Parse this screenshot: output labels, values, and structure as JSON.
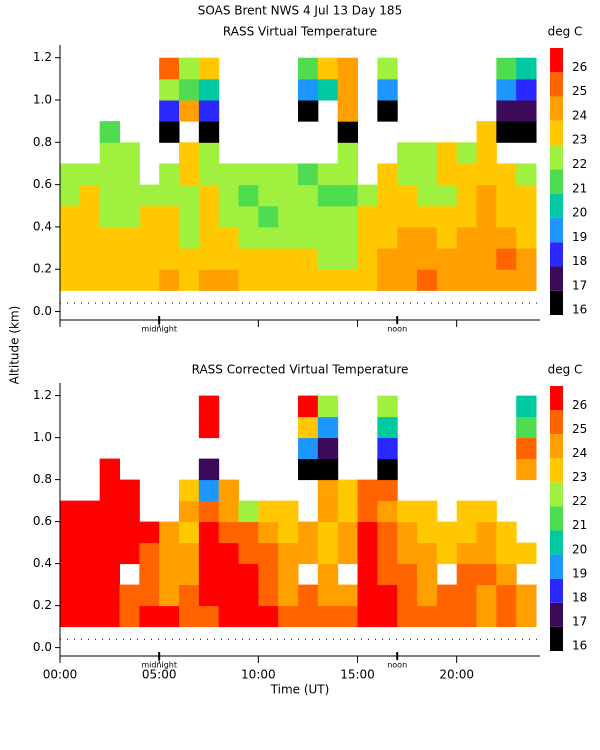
{
  "title": "SOAS Brent NWS    4 Jul 13 Day 185",
  "ylabel": "Altitude (km)",
  "chart_data": [
    {
      "type": "heatmap",
      "title": "RASS Virtual Temperature",
      "colorbar_label": "deg C",
      "x": [
        0.5,
        1.5,
        2.5,
        3.5,
        4.5,
        5.5,
        6.5,
        7.5,
        8.5,
        9.5,
        10.5,
        11.5,
        12.5,
        13.5,
        14.5,
        15.5,
        16.5,
        17.5,
        18.5,
        19.5,
        20.5,
        21.5,
        22.5,
        23.5
      ],
      "y": [
        0.15,
        0.25,
        0.35,
        0.45,
        0.55,
        0.65,
        0.75,
        0.85,
        0.95,
        1.05,
        1.15
      ],
      "z": [
        [
          23,
          23,
          23,
          23,
          23,
          24,
          23,
          24,
          24,
          23,
          23,
          23,
          23,
          23,
          23,
          23,
          24,
          24,
          25,
          24,
          24,
          24,
          24,
          24
        ],
        [
          23,
          23,
          23,
          23,
          23,
          23,
          23,
          23,
          23,
          23,
          23,
          23,
          23,
          22,
          22,
          23,
          24,
          24,
          24,
          24,
          24,
          24,
          25,
          24
        ],
        [
          23,
          23,
          23,
          23,
          23,
          23,
          22,
          23,
          23,
          22,
          22,
          22,
          22,
          22,
          22,
          23,
          23,
          24,
          24,
          23,
          24,
          24,
          24,
          23
        ],
        [
          23,
          23,
          22,
          22,
          23,
          23,
          22,
          23,
          22,
          22,
          21,
          22,
          22,
          22,
          22,
          23,
          23,
          23,
          23,
          23,
          23,
          24,
          23,
          23
        ],
        [
          22,
          23,
          22,
          22,
          22,
          22,
          22,
          23,
          22,
          21,
          22,
          22,
          22,
          21,
          21,
          22,
          23,
          23,
          22,
          22,
          23,
          24,
          23,
          23
        ],
        [
          22,
          22,
          22,
          22,
          null,
          22,
          23,
          22,
          22,
          22,
          22,
          22,
          21,
          22,
          22,
          null,
          23,
          22,
          22,
          23,
          23,
          23,
          23,
          22
        ],
        [
          null,
          null,
          22,
          22,
          null,
          null,
          23,
          22,
          null,
          null,
          null,
          null,
          null,
          null,
          22,
          null,
          null,
          22,
          22,
          23,
          22,
          23,
          null,
          null
        ],
        [
          null,
          null,
          21,
          null,
          null,
          16,
          null,
          16,
          null,
          null,
          null,
          null,
          null,
          null,
          16,
          null,
          null,
          null,
          null,
          null,
          null,
          23,
          16,
          16
        ],
        [
          null,
          null,
          null,
          null,
          null,
          18,
          24,
          18,
          null,
          null,
          null,
          null,
          16,
          null,
          24,
          null,
          16,
          null,
          null,
          null,
          null,
          null,
          17,
          17
        ],
        [
          null,
          null,
          null,
          null,
          null,
          22,
          21,
          20,
          null,
          null,
          null,
          null,
          19,
          20,
          24,
          null,
          19,
          null,
          null,
          null,
          null,
          null,
          19,
          18
        ],
        [
          null,
          null,
          null,
          null,
          null,
          25,
          22,
          23,
          null,
          null,
          null,
          null,
          21,
          23,
          24,
          null,
          22,
          null,
          null,
          null,
          null,
          null,
          21,
          20
        ]
      ],
      "levels": [
        16,
        17,
        18,
        19,
        20,
        21,
        22,
        23,
        24,
        25,
        26
      ],
      "colors": [
        "#000000",
        "#3c0a5a",
        "#2828ff",
        "#1e96ff",
        "#00c8a0",
        "#50dc50",
        "#a0f040",
        "#ffc800",
        "#ffa000",
        "#ff6400",
        "#ff0000"
      ],
      "xlim": [
        0,
        24.2
      ],
      "ylim": [
        -0.04,
        1.26
      ],
      "xticks": [
        0,
        5,
        10,
        15,
        20
      ],
      "yticks": [
        {
          "value": 0,
          "label": "0.0"
        },
        0.2,
        0.4,
        0.6,
        0.8,
        {
          "value": 1,
          "label": "1.0"
        },
        1.2
      ],
      "hline": 0.04,
      "annotations": [
        {
          "text": "midnight",
          "x": 5
        },
        {
          "text": "noon",
          "x": 17
        }
      ]
    },
    {
      "type": "heatmap",
      "title": "RASS Corrected Virtual Temperature",
      "colorbar_label": "deg C",
      "xlabel": "Time (UT)",
      "x": [
        0.5,
        1.5,
        2.5,
        3.5,
        4.5,
        5.5,
        6.5,
        7.5,
        8.5,
        9.5,
        10.5,
        11.5,
        12.5,
        13.5,
        14.5,
        15.5,
        16.5,
        17.5,
        18.5,
        19.5,
        20.5,
        21.5,
        22.5,
        23.5
      ],
      "y": [
        0.15,
        0.25,
        0.35,
        0.45,
        0.55,
        0.65,
        0.75,
        0.85,
        0.95,
        1.05,
        1.15
      ],
      "z": [
        [
          26,
          26,
          26,
          25,
          26,
          26,
          25,
          25,
          26,
          26,
          26,
          25,
          25,
          25,
          25,
          26,
          26,
          25,
          25,
          25,
          25,
          24,
          25,
          24
        ],
        [
          26,
          26,
          26,
          25,
          25,
          24,
          25,
          26,
          26,
          26,
          25,
          24,
          25,
          24,
          24,
          26,
          26,
          25,
          24,
          25,
          25,
          24,
          25,
          24
        ],
        [
          26,
          26,
          26,
          null,
          25,
          24,
          24,
          26,
          26,
          26,
          25,
          24,
          null,
          24,
          null,
          26,
          25,
          25,
          24,
          null,
          25,
          25,
          24,
          null
        ],
        [
          26,
          26,
          26,
          26,
          25,
          24,
          24,
          26,
          26,
          25,
          25,
          24,
          24,
          23,
          24,
          26,
          25,
          24,
          24,
          23,
          24,
          24,
          23,
          23
        ],
        [
          26,
          26,
          26,
          26,
          26,
          24,
          23,
          26,
          25,
          25,
          24,
          23,
          24,
          23,
          24,
          26,
          25,
          24,
          23,
          23,
          23,
          24,
          23,
          null
        ],
        [
          26,
          26,
          26,
          26,
          null,
          null,
          24,
          25,
          24,
          22,
          23,
          23,
          null,
          24,
          23,
          25,
          24,
          23,
          23,
          null,
          23,
          23,
          null,
          null
        ],
        [
          null,
          null,
          26,
          26,
          null,
          null,
          23,
          19,
          24,
          null,
          null,
          null,
          null,
          24,
          23,
          25,
          25,
          null,
          null,
          null,
          null,
          null,
          null,
          null
        ],
        [
          null,
          null,
          26,
          null,
          null,
          null,
          null,
          17,
          null,
          null,
          null,
          null,
          16,
          16,
          null,
          null,
          16,
          null,
          null,
          null,
          null,
          null,
          null,
          24
        ],
        [
          null,
          null,
          null,
          null,
          null,
          null,
          null,
          null,
          null,
          null,
          null,
          null,
          19,
          17,
          null,
          null,
          18,
          null,
          null,
          null,
          null,
          null,
          null,
          25
        ],
        [
          null,
          null,
          null,
          null,
          null,
          null,
          null,
          26,
          null,
          null,
          null,
          null,
          23,
          19,
          null,
          null,
          20,
          null,
          null,
          null,
          null,
          null,
          null,
          21
        ],
        [
          null,
          null,
          null,
          null,
          null,
          null,
          null,
          26,
          null,
          null,
          null,
          null,
          26,
          22,
          null,
          null,
          22,
          null,
          null,
          null,
          null,
          null,
          null,
          20
        ]
      ],
      "levels": [
        16,
        17,
        18,
        19,
        20,
        21,
        22,
        23,
        24,
        25,
        26
      ],
      "colors": [
        "#000000",
        "#3c0a5a",
        "#2828ff",
        "#1e96ff",
        "#00c8a0",
        "#50dc50",
        "#a0f040",
        "#ffc800",
        "#ffa000",
        "#ff6400",
        "#ff0000"
      ],
      "xlim": [
        0,
        24.2
      ],
      "ylim": [
        -0.04,
        1.26
      ],
      "xticks": [
        {
          "value": 0,
          "label": "00:00"
        },
        {
          "value": 5,
          "label": "05:00"
        },
        {
          "value": 10,
          "label": "10:00"
        },
        {
          "value": 15,
          "label": "15:00"
        },
        {
          "value": 20,
          "label": "20:00"
        }
      ],
      "yticks": [
        {
          "value": 0,
          "label": "0.0"
        },
        0.2,
        0.4,
        0.6,
        0.8,
        {
          "value": 1,
          "label": "1.0"
        },
        1.2
      ],
      "hline": 0.04,
      "annotations": [
        {
          "text": "midnight",
          "x": 5
        },
        {
          "text": "noon",
          "x": 17
        }
      ]
    }
  ]
}
